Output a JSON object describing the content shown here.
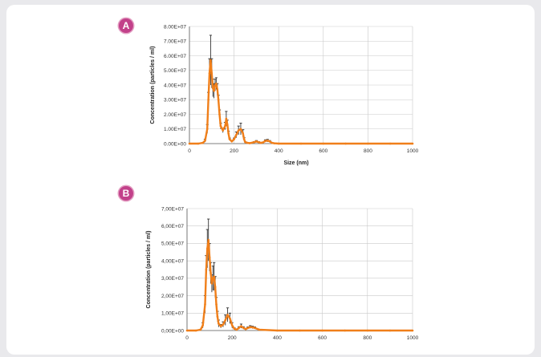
{
  "panels": [
    {
      "badge": "A"
    },
    {
      "badge": "B"
    }
  ],
  "colors": {
    "series": "#f07f1a",
    "error_bars": "#333333",
    "grid": "#c9c9c9",
    "badge": "#c2418a"
  },
  "chart_data": [
    {
      "type": "line",
      "title": "",
      "xlabel": "Size (nm)",
      "ylabel": "Concentration (particles / ml)",
      "xlim": [
        0,
        1000
      ],
      "ylim": [
        0,
        80000000
      ],
      "x_ticks": [
        "0",
        "200",
        "400",
        "600",
        "800",
        "1000"
      ],
      "y_ticks": [
        "0.00E+00",
        "1.00E+07",
        "2.00E+07",
        "3.00E+07",
        "4.00E+07",
        "5.00E+07",
        "6.00E+07",
        "7.00E+07",
        "8.00E+07"
      ],
      "grid": true,
      "series": [
        {
          "x": [
            0,
            40,
            60,
            70,
            80,
            85,
            90,
            95,
            100,
            105,
            110,
            115,
            120,
            125,
            130,
            135,
            140,
            150,
            160,
            165,
            170,
            175,
            180,
            190,
            200,
            210,
            220,
            230,
            240,
            245,
            250,
            260,
            270,
            290,
            300,
            310,
            320,
            330,
            340,
            350,
            360,
            370,
            380,
            400,
            500,
            600,
            700,
            800,
            900,
            1000
          ],
          "y": [
            0,
            0,
            500000,
            2000000,
            10000000,
            30000000,
            48000000,
            57000000,
            48000000,
            38000000,
            36000000,
            40000000,
            41000000,
            37000000,
            30000000,
            20000000,
            12000000,
            9000000,
            12000000,
            17000000,
            13000000,
            7000000,
            3000000,
            1500000,
            3000000,
            6000000,
            9000000,
            10000000,
            7000000,
            3000000,
            1000000,
            500000,
            300000,
            1000000,
            1500000,
            1000000,
            500000,
            800000,
            1800000,
            2000000,
            1500000,
            500000,
            200000,
            0,
            0,
            0,
            0,
            0,
            0,
            0
          ],
          "error": [
            0,
            0,
            200000,
            1000000,
            3000000,
            5000000,
            10000000,
            17000000,
            10000000,
            6000000,
            5000000,
            4000000,
            4000000,
            4000000,
            3000000,
            3000000,
            2000000,
            1500000,
            2500000,
            5000000,
            3000000,
            1500000,
            800000,
            500000,
            800000,
            2000000,
            3000000,
            4000000,
            2500000,
            1000000,
            300000,
            200000,
            200000,
            400000,
            600000,
            400000,
            200000,
            300000,
            800000,
            900000,
            600000,
            200000,
            100000,
            0,
            0,
            0,
            0,
            0,
            0,
            0
          ]
        }
      ]
    },
    {
      "type": "line",
      "title": "",
      "xlabel": "",
      "ylabel": "Concentration (particles / ml)",
      "xlim": [
        0,
        1000
      ],
      "ylim": [
        0,
        70000000
      ],
      "x_ticks": [
        "0",
        "200",
        "400",
        "600",
        "800",
        "1000"
      ],
      "y_ticks": [
        "0,00E+00",
        "1,00E+07",
        "2,00E+07",
        "3,00E+07",
        "4,00E+07",
        "5,00E+07",
        "6,00E+07",
        "7,00E+07"
      ],
      "grid": true,
      "series": [
        {
          "x": [
            0,
            40,
            60,
            70,
            80,
            85,
            90,
            95,
            100,
            105,
            110,
            115,
            120,
            125,
            130,
            135,
            140,
            150,
            160,
            170,
            180,
            190,
            200,
            210,
            220,
            230,
            240,
            250,
            260,
            270,
            280,
            290,
            300,
            320,
            400,
            500,
            600,
            700,
            800,
            900,
            1000
          ],
          "y": [
            0,
            0,
            500000,
            3000000,
            15000000,
            35000000,
            47000000,
            52000000,
            42000000,
            33000000,
            27000000,
            30000000,
            31000000,
            25000000,
            15000000,
            8000000,
            4000000,
            2500000,
            3500000,
            6000000,
            9000000,
            7000000,
            3000000,
            1000000,
            500000,
            1500000,
            2500000,
            1500000,
            800000,
            1500000,
            2000000,
            1800000,
            1500000,
            500000,
            0,
            0,
            0,
            0,
            0,
            0,
            0
          ],
          "error": [
            0,
            0,
            200000,
            1500000,
            5000000,
            8000000,
            11000000,
            12000000,
            8000000,
            6000000,
            5000000,
            7000000,
            8000000,
            6000000,
            4000000,
            3000000,
            2000000,
            1000000,
            1500000,
            3000000,
            4000000,
            3000000,
            1500000,
            500000,
            300000,
            700000,
            1200000,
            700000,
            400000,
            600000,
            800000,
            700000,
            600000,
            200000,
            0,
            0,
            0,
            0,
            0,
            0,
            0
          ]
        }
      ]
    }
  ]
}
